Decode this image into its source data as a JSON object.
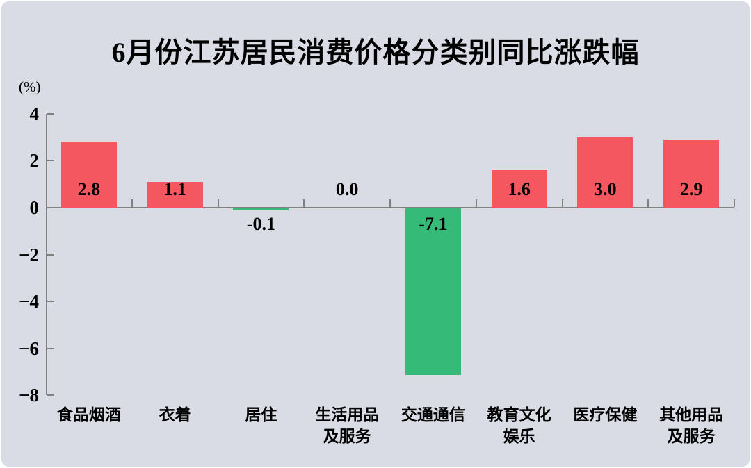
{
  "title": "6月份江苏居民消费价格分类别同比涨跌幅",
  "unit_label": "(%)",
  "colors": {
    "background": "#d9dce5",
    "axis": "#808080",
    "text": "#000000",
    "positive_bar": "#f4575e",
    "negative_bar": "#35ba78"
  },
  "chart_data": {
    "type": "bar",
    "title": "6月份江苏居民消费价格分类别同比涨跌幅",
    "xlabel": "",
    "ylabel": "(%)",
    "categories": [
      "食品烟酒",
      "衣着",
      "居住",
      "生活用品及服务",
      "交通通信",
      "教育文化娱乐",
      "医疗保健",
      "其他用品及服务"
    ],
    "category_lines": [
      [
        "食品烟酒"
      ],
      [
        "衣着"
      ],
      [
        "居住"
      ],
      [
        "生活用品",
        "及服务"
      ],
      [
        "交通通信"
      ],
      [
        "教育文化",
        "娱乐"
      ],
      [
        "医疗保健"
      ],
      [
        "其他用品",
        "及服务"
      ]
    ],
    "values": [
      2.8,
      1.1,
      -0.1,
      0.0,
      -7.1,
      1.6,
      3.0,
      2.9
    ],
    "value_labels": [
      "2.8",
      "1.1",
      "-0.1",
      "0.0",
      "-7.1",
      "1.6",
      "3.0",
      "2.9"
    ],
    "ylim": [
      -8,
      4
    ],
    "yticks": [
      4,
      2,
      0,
      -2,
      -4,
      -6,
      -8
    ],
    "ytick_labels": [
      "4",
      "2",
      "0",
      "−2",
      "−4",
      "−6",
      "−8"
    ],
    "grid": false,
    "legend_position": "none",
    "positive_color": "#f4575e",
    "negative_color": "#35ba78"
  }
}
